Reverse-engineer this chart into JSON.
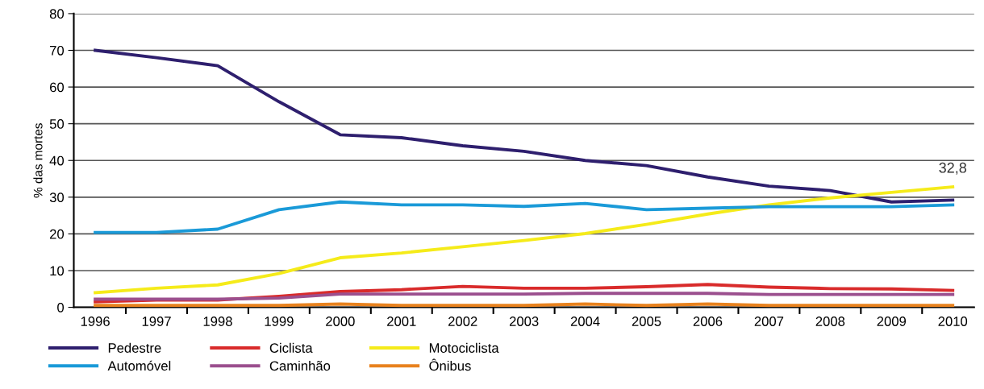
{
  "chart_data": {
    "type": "line",
    "ylabel": "% das mortes",
    "categories": [
      "1996",
      "1997",
      "1998",
      "1999",
      "2000",
      "2001",
      "2002",
      "2003",
      "2004",
      "2005",
      "2006",
      "2007",
      "2008",
      "2009",
      "2010"
    ],
    "ylim": [
      0,
      80
    ],
    "yticks": [
      0,
      10,
      20,
      30,
      40,
      50,
      60,
      70,
      80
    ],
    "grid": "y",
    "legend": "bottom left",
    "marker": "none",
    "line_style": "solid",
    "series": [
      {
        "name": "Pedestre",
        "color": "#2e1f6e",
        "values": [
          70,
          68,
          65.8,
          56,
          47,
          46.2,
          44,
          42.5,
          40,
          38.6,
          35.5,
          33,
          31.8,
          28.7,
          29.2
        ]
      },
      {
        "name": "Ciclista",
        "color": "#d92b2b",
        "values": [
          1.5,
          2,
          2,
          3,
          4.3,
          4.8,
          5.7,
          5.2,
          5.2,
          5.6,
          6.2,
          5.5,
          5.1,
          5,
          4.6
        ]
      },
      {
        "name": "Motociclista",
        "color": "#f5eb1a",
        "values": [
          4,
          5.2,
          6.1,
          9.2,
          13.5,
          14.8,
          16.5,
          18.2,
          20.1,
          22.6,
          25.4,
          27.9,
          29.8,
          31.3,
          32.8
        ]
      },
      {
        "name": "Automóvel",
        "color": "#1a9ad8",
        "values": [
          20.4,
          20.4,
          21.3,
          26.6,
          28.7,
          27.9,
          27.9,
          27.5,
          28.3,
          26.6,
          27,
          27.4,
          27.4,
          27.4,
          27.9
        ]
      },
      {
        "name": "Caminhão",
        "color": "#9b4f8e",
        "values": [
          2.2,
          2.2,
          2.2,
          2.5,
          3.6,
          3.6,
          3.6,
          3.6,
          3.8,
          3.8,
          3.8,
          3.5,
          3.5,
          3.5,
          3.5
        ]
      },
      {
        "name": "Ônibus",
        "color": "#e8821e",
        "values": [
          0.5,
          0.5,
          0.5,
          0.5,
          0.9,
          0.5,
          0.5,
          0.5,
          0.9,
          0.5,
          0.9,
          0.5,
          0.5,
          0.5,
          0.5
        ]
      }
    ],
    "annotations": [
      {
        "text": "32,8",
        "x": "2010",
        "y": 32.8
      }
    ]
  }
}
